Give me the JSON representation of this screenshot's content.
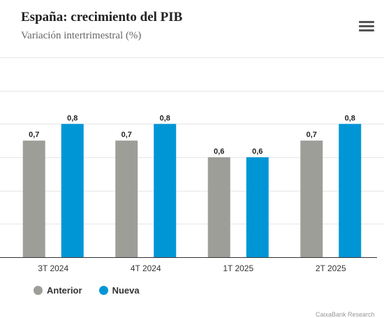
{
  "header": {
    "title": "España: crecimiento del PIB",
    "subtitle": "Variación intertrimestral (%)"
  },
  "menu_icon": "hamburger-menu-icon",
  "source": "CaixaBank Research",
  "colors": {
    "anterior": "#9e9e99",
    "nueva": "#0096d6",
    "grid": "#e6e6e6",
    "axis": "#333333"
  },
  "chart_data": {
    "type": "bar",
    "title": "España: crecimiento del PIB",
    "subtitle": "Variación intertrimestral (%)",
    "categories": [
      "3T 2024",
      "4T 2024",
      "1T 2025",
      "2T 2025"
    ],
    "series": [
      {
        "name": "Anterior",
        "values": [
          0.7,
          0.7,
          0.6,
          0.7
        ],
        "labels": [
          "0,7",
          "0,7",
          "0,6",
          "0,7"
        ],
        "color": "#9e9e99"
      },
      {
        "name": "Nueva",
        "values": [
          0.8,
          0.8,
          0.6,
          0.8
        ],
        "labels": [
          "0,8",
          "0,8",
          "0,6",
          "0,8"
        ],
        "color": "#0096d6"
      }
    ],
    "ylim": [
      0,
      1.2
    ],
    "grid": true,
    "legend": "bottom-left",
    "xlabel": "",
    "ylabel": ""
  }
}
